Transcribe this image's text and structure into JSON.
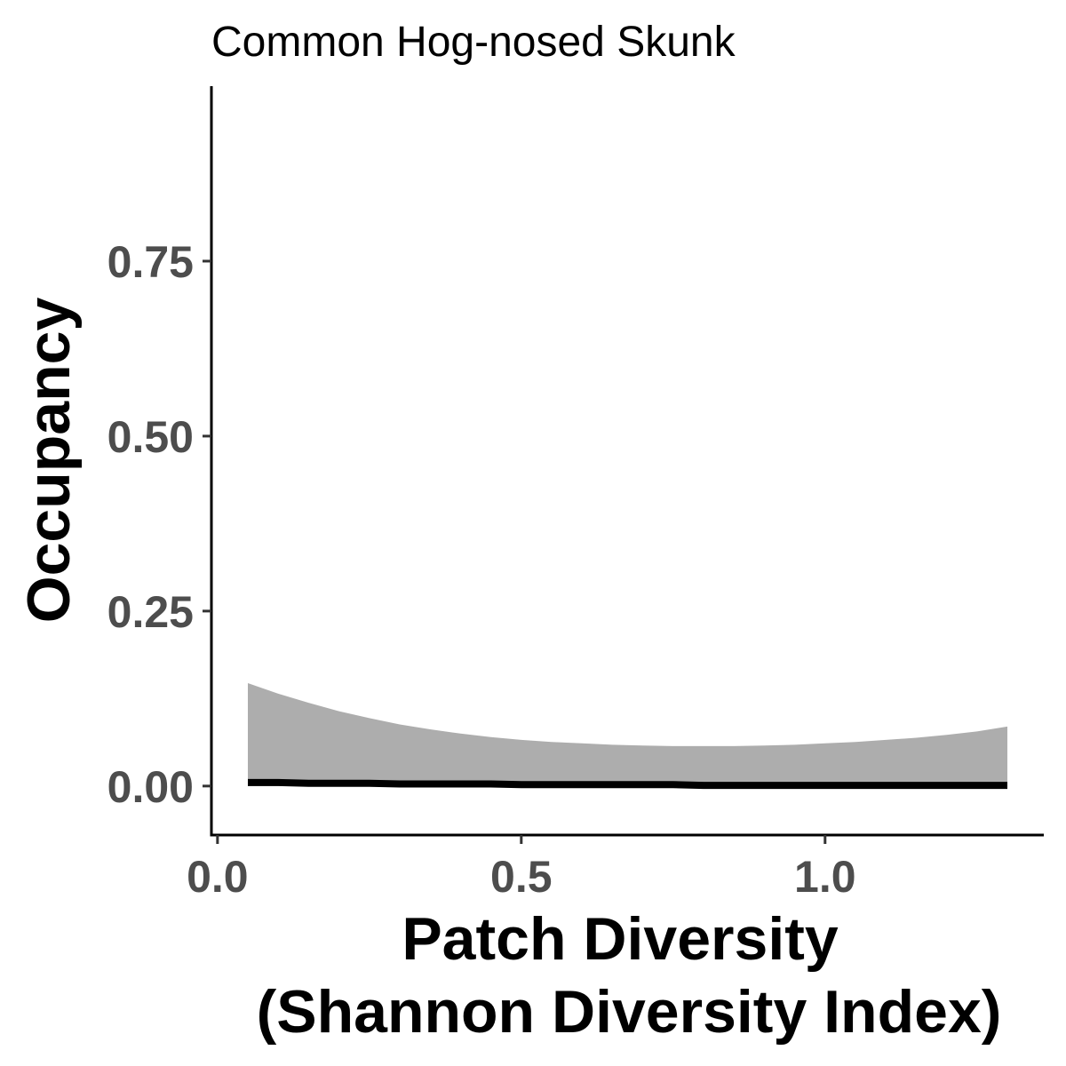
{
  "chart_data": {
    "type": "line",
    "title": "Common Hog-nosed Skunk",
    "xlabel_lines": [
      "Patch Diversity",
      "(Shannon Diversity Index)"
    ],
    "ylabel": "Occupancy",
    "xlim": [
      -0.01,
      1.36
    ],
    "ylim": [
      -0.07,
      1.0
    ],
    "x_ticks": [
      0.0,
      0.5,
      1.0
    ],
    "x_tick_labels": [
      "0.0",
      "0.5",
      "1.0"
    ],
    "y_ticks": [
      0.0,
      0.25,
      0.5,
      0.75
    ],
    "y_tick_labels": [
      "0.00",
      "0.25",
      "0.50",
      "0.75"
    ],
    "grid": false,
    "series": [
      {
        "x": [
          0.05,
          0.1,
          0.15,
          0.2,
          0.25,
          0.3,
          0.35,
          0.4,
          0.45,
          0.5,
          0.55,
          0.6,
          0.65,
          0.7,
          0.75,
          0.8,
          0.85,
          0.9,
          0.95,
          1.0,
          1.05,
          1.1,
          1.15,
          1.2,
          1.25,
          1.3
        ],
        "y": [
          0.005,
          0.005,
          0.004,
          0.004,
          0.004,
          0.003,
          0.003,
          0.003,
          0.003,
          0.002,
          0.002,
          0.002,
          0.002,
          0.002,
          0.002,
          0.001,
          0.001,
          0.001,
          0.001,
          0.001,
          0.001,
          0.001,
          0.001,
          0.001,
          0.001,
          0.001
        ],
        "ci_upper": [
          0.147,
          0.132,
          0.119,
          0.107,
          0.097,
          0.088,
          0.081,
          0.075,
          0.07,
          0.066,
          0.063,
          0.061,
          0.059,
          0.058,
          0.057,
          0.057,
          0.057,
          0.058,
          0.059,
          0.061,
          0.063,
          0.066,
          0.069,
          0.073,
          0.078,
          0.085
        ],
        "ci_lower": [
          0.0,
          0.0,
          0.0,
          0.0,
          0.0,
          0.0,
          0.0,
          0.0,
          0.0,
          0.0,
          0.0,
          0.0,
          0.0,
          0.0,
          0.0,
          0.0,
          0.0,
          0.0,
          0.0,
          0.0,
          0.0,
          0.0,
          0.0,
          0.0,
          0.0,
          0.0
        ],
        "line_color": "#000000",
        "ribbon_color": "#adadad"
      }
    ]
  }
}
